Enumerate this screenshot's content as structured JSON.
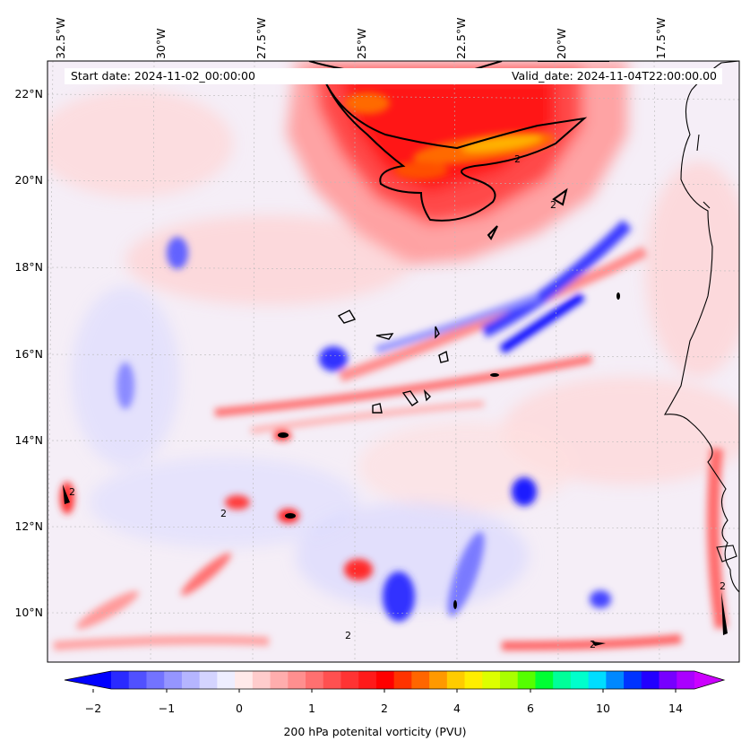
{
  "header": {
    "start_date": "Start date: 2024-11-02_00:00:00",
    "valid_date": "Valid_date: 2024-11-04T22:00:00.00"
  },
  "axes": {
    "lon_labels": [
      "32.5°W",
      "30°W",
      "27.5°W",
      "25°W",
      "22.5°W",
      "20°W",
      "17.5°W"
    ],
    "lat_labels": [
      "22°N",
      "20°N",
      "18°N",
      "16°N",
      "14°N",
      "12°N",
      "10°N"
    ]
  },
  "colorbar": {
    "ticks": [
      "−2",
      "−1",
      "0",
      "1",
      "2",
      "4",
      "6",
      "10",
      "14"
    ],
    "label": "200 hPa potenital vorticity (PVU)",
    "colors": [
      "#0000ff",
      "#2a2aff",
      "#5050ff",
      "#7373ff",
      "#9595ff",
      "#b5b5ff",
      "#d4d4ff",
      "#eeeeff",
      "#ffeaea",
      "#ffcccc",
      "#ffadad",
      "#ff8f8f",
      "#ff7070",
      "#ff5050",
      "#ff3333",
      "#ff1a1a",
      "#ff0000",
      "#ff3300",
      "#ff6600",
      "#ff9900",
      "#ffcc00",
      "#ffee00",
      "#ddff00",
      "#aaff00",
      "#55ff00",
      "#00ff33",
      "#00ff99",
      "#00ffcc",
      "#00ddff",
      "#0088ff",
      "#0033ff",
      "#2200ff",
      "#7700ff",
      "#aa00ff",
      "#cc00ff"
    ]
  },
  "contour_labels": [
    "2",
    "2",
    "2",
    "2",
    "2",
    "2",
    "2"
  ],
  "colors": {
    "blue_strong": "#0000ff",
    "blue_mid": "#6b6bff",
    "blue_light": "#c9c9ff",
    "red_light": "#ffcfcf",
    "red_mid": "#ff7a7a",
    "red_strong": "#ff1a1a",
    "orange": "#ff7700",
    "yellow": "#ffaa00",
    "background": "#f7f0f7"
  }
}
